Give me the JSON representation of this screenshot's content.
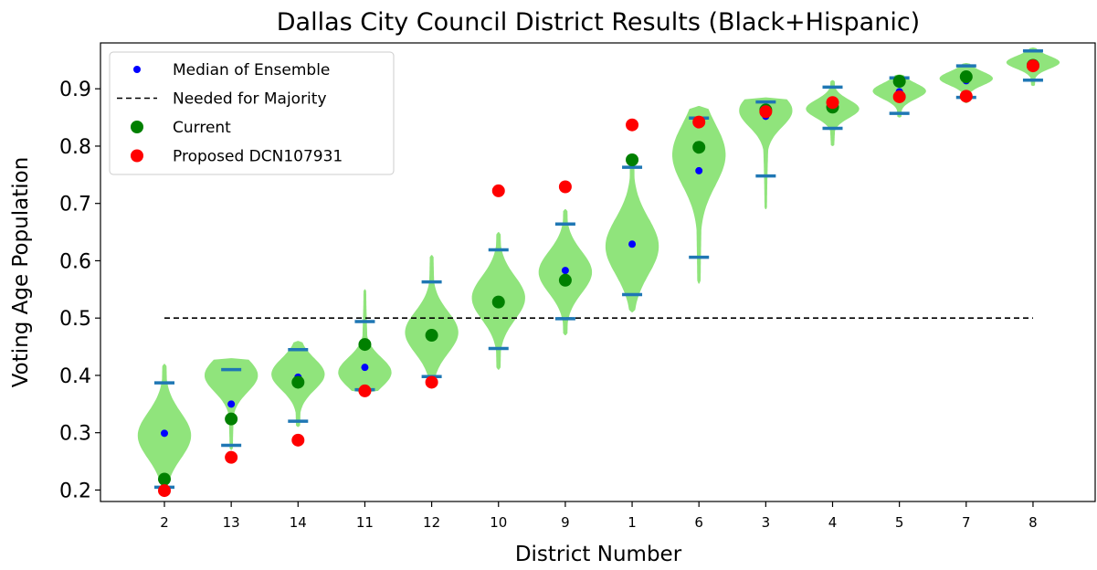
{
  "chart_data": {
    "type": "violin",
    "title": "Dallas City Council District Results  (Black+Hispanic)",
    "xlabel": "District Number",
    "ylabel": "Voting Age Population",
    "ylim": [
      0.18,
      0.98
    ],
    "yticks": [
      0.2,
      0.3,
      0.4,
      0.5,
      0.6,
      0.7,
      0.8,
      0.9
    ],
    "ytick_labels": [
      "0.2",
      "0.3",
      "0.4",
      "0.5",
      "0.6",
      "0.7",
      "0.8",
      "0.9"
    ],
    "categories": [
      "2",
      "13",
      "14",
      "11",
      "12",
      "10",
      "9",
      "1",
      "6",
      "3",
      "4",
      "5",
      "7",
      "8"
    ],
    "majority_threshold": 0.5,
    "grid": false,
    "legend_position": "upper-left",
    "legend": [
      {
        "label": "Median of Ensemble",
        "marker": "small-dot",
        "color": "#0000ff"
      },
      {
        "label": "Needed for Majority",
        "marker": "dashed-line",
        "color": "#000000"
      },
      {
        "label": "Current",
        "marker": "dot",
        "color": "#008000"
      },
      {
        "label": "Proposed DCN107931",
        "marker": "dot",
        "color": "#ff0000"
      }
    ],
    "violins": [
      {
        "district": "2",
        "min": 0.205,
        "max": 0.387,
        "median": 0.299,
        "peak": 0.295,
        "tail_low": 0.2,
        "tail_high": 0.42
      },
      {
        "district": "13",
        "min": 0.278,
        "max": 0.41,
        "median": 0.35,
        "peak": 0.4,
        "tail_low": 0.27,
        "tail_high": 0.43
      },
      {
        "district": "14",
        "min": 0.32,
        "max": 0.445,
        "median": 0.397,
        "peak": 0.402,
        "tail_low": 0.31,
        "tail_high": 0.46
      },
      {
        "district": "11",
        "min": 0.375,
        "max": 0.494,
        "median": 0.414,
        "peak": 0.405,
        "tail_low": 0.37,
        "tail_high": 0.55
      },
      {
        "district": "12",
        "min": 0.398,
        "max": 0.563,
        "median": 0.47,
        "peak": 0.475,
        "tail_low": 0.39,
        "tail_high": 0.61
      },
      {
        "district": "10",
        "min": 0.447,
        "max": 0.619,
        "median": 0.527,
        "peak": 0.535,
        "tail_low": 0.41,
        "tail_high": 0.65
      },
      {
        "district": "9",
        "min": 0.499,
        "max": 0.664,
        "median": 0.583,
        "peak": 0.58,
        "tail_low": 0.47,
        "tail_high": 0.69
      },
      {
        "district": "1",
        "min": 0.541,
        "max": 0.763,
        "median": 0.629,
        "peak": 0.625,
        "tail_low": 0.51,
        "tail_high": 0.77
      },
      {
        "district": "6",
        "min": 0.606,
        "max": 0.849,
        "median": 0.757,
        "peak": 0.785,
        "tail_low": 0.56,
        "tail_high": 0.87
      },
      {
        "district": "3",
        "min": 0.748,
        "max": 0.877,
        "median": 0.852,
        "peak": 0.862,
        "tail_low": 0.69,
        "tail_high": 0.885
      },
      {
        "district": "4",
        "min": 0.831,
        "max": 0.903,
        "median": 0.87,
        "peak": 0.865,
        "tail_low": 0.8,
        "tail_high": 0.915
      },
      {
        "district": "5",
        "min": 0.857,
        "max": 0.919,
        "median": 0.895,
        "peak": 0.896,
        "tail_low": 0.85,
        "tail_high": 0.925
      },
      {
        "district": "7",
        "min": 0.885,
        "max": 0.94,
        "median": 0.914,
        "peak": 0.918,
        "tail_low": 0.875,
        "tail_high": 0.945
      },
      {
        "district": "8",
        "min": 0.915,
        "max": 0.966,
        "median": 0.944,
        "peak": 0.946,
        "tail_low": 0.905,
        "tail_high": 0.972
      }
    ],
    "series": [
      {
        "name": "Current",
        "color": "#008000",
        "values": [
          0.219,
          0.324,
          0.388,
          0.454,
          0.47,
          0.528,
          0.566,
          0.776,
          0.798,
          0.863,
          0.868,
          0.913,
          0.921,
          0.941
        ]
      },
      {
        "name": "Proposed DCN107931",
        "color": "#ff0000",
        "values": [
          0.199,
          0.257,
          0.287,
          0.373,
          0.388,
          0.722,
          0.729,
          0.837,
          0.842,
          0.86,
          0.876,
          0.886,
          0.887,
          0.94
        ]
      }
    ],
    "colors": {
      "violin": "#90e47c",
      "whisker": "#1f77b4",
      "median": "#0000ff",
      "threshold": "#000000"
    }
  }
}
